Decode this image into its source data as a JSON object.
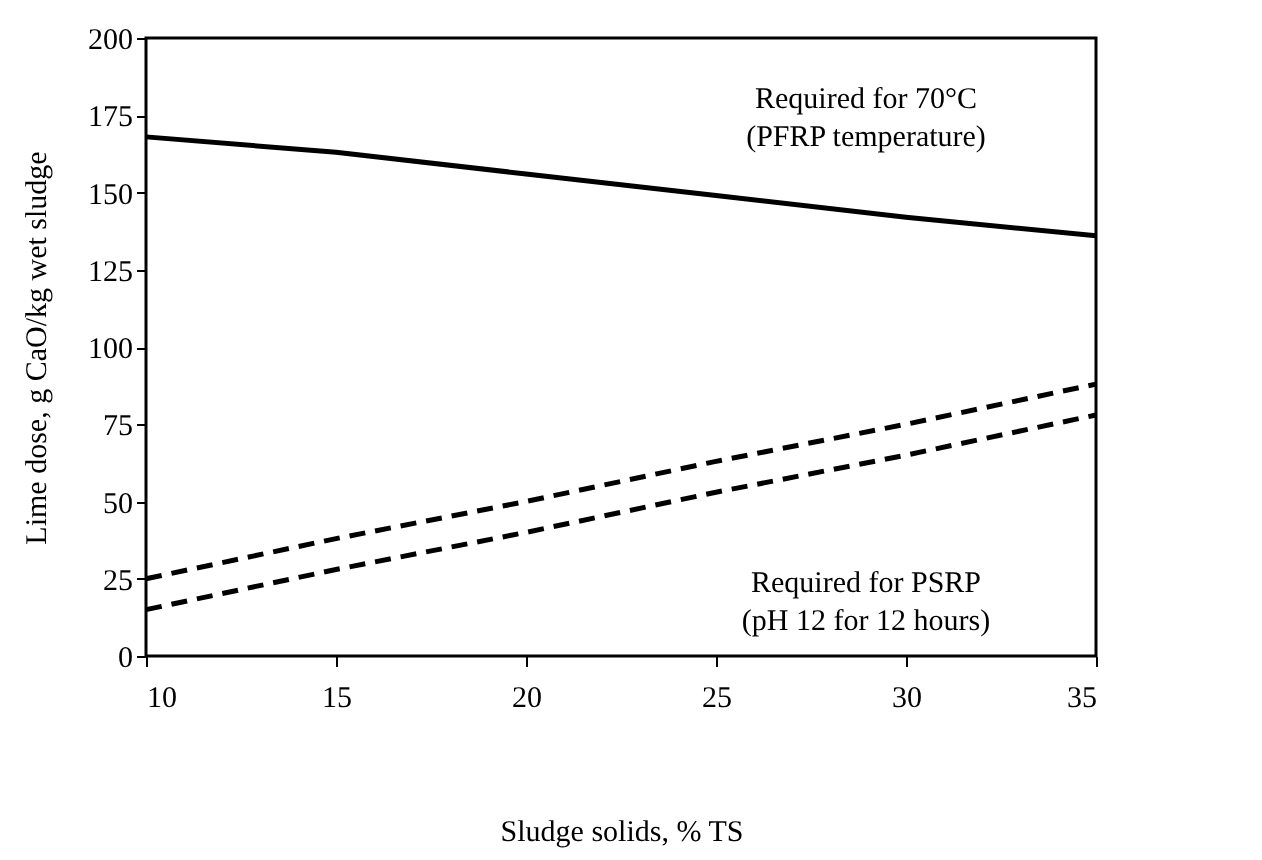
{
  "chart_data": {
    "type": "line",
    "xlabel": "Sludge solids, % TS",
    "ylabel": "Lime dose, g CaO/kg wet sludge",
    "x": [
      10,
      15,
      20,
      25,
      30,
      35
    ],
    "series": [
      {
        "color": "#000000",
        "line_style": "solid",
        "values": [
          168,
          163,
          156,
          149,
          142,
          136
        ]
      },
      {
        "color": "#000000",
        "line_style": "dashed",
        "values": [
          25,
          38,
          50,
          63,
          75,
          88
        ]
      },
      {
        "color": "#000000",
        "line_style": "dashed",
        "values": [
          15,
          28,
          40,
          53,
          65,
          78
        ]
      }
    ],
    "annotations": [
      "Required for 70°C\n(PFRP temperature)",
      "Required for PSRP\n(pH 12 for 12 hours)"
    ],
    "grid": false,
    "xlim": [
      10,
      35
    ],
    "xticks": [
      10,
      15,
      20,
      25,
      30,
      35
    ],
    "ylim": [
      0,
      200
    ],
    "yticks": [
      0,
      25,
      50,
      75,
      100,
      125,
      150,
      175,
      200
    ],
    "marker": "none"
  }
}
